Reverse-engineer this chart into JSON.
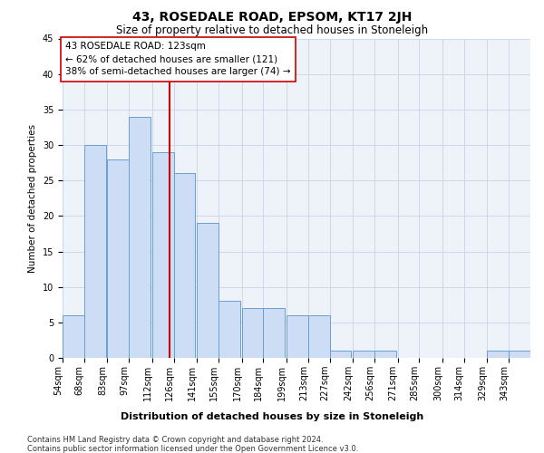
{
  "title": "43, ROSEDALE ROAD, EPSOM, KT17 2JH",
  "subtitle": "Size of property relative to detached houses in Stoneleigh",
  "xlabel": "Distribution of detached houses by size in Stoneleigh",
  "ylabel": "Number of detached properties",
  "bins_left": [
    54,
    68,
    83,
    97,
    112,
    126,
    141,
    155,
    170,
    184,
    199,
    213,
    227,
    242,
    256,
    271,
    285,
    300,
    314,
    329,
    343
  ],
  "bin_width": 14,
  "values": [
    6,
    30,
    28,
    34,
    29,
    26,
    19,
    8,
    7,
    7,
    6,
    6,
    1,
    1,
    1,
    0,
    0,
    0,
    0,
    1,
    1
  ],
  "bar_color": "#ccddf5",
  "bar_edge_color": "#6a9fd0",
  "property_size": 123,
  "vline_color": "#cc0000",
  "annotation_text": "43 ROSEDALE ROAD: 123sqm\n← 62% of detached houses are smaller (121)\n38% of semi-detached houses are larger (74) →",
  "annotation_box_color": "#ffffff",
  "annotation_box_edge": "#cc0000",
  "ylim": [
    0,
    45
  ],
  "yticks": [
    0,
    5,
    10,
    15,
    20,
    25,
    30,
    35,
    40,
    45
  ],
  "footer1": "Contains HM Land Registry data © Crown copyright and database right 2024.",
  "footer2": "Contains public sector information licensed under the Open Government Licence v3.0.",
  "grid_color": "#c8d4e8",
  "bg_color": "#eef2f9",
  "title_fontsize": 10,
  "subtitle_fontsize": 8.5,
  "xlabel_fontsize": 8,
  "ylabel_fontsize": 7.5,
  "tick_fontsize": 7,
  "footer_fontsize": 6,
  "annot_fontsize": 7.5
}
